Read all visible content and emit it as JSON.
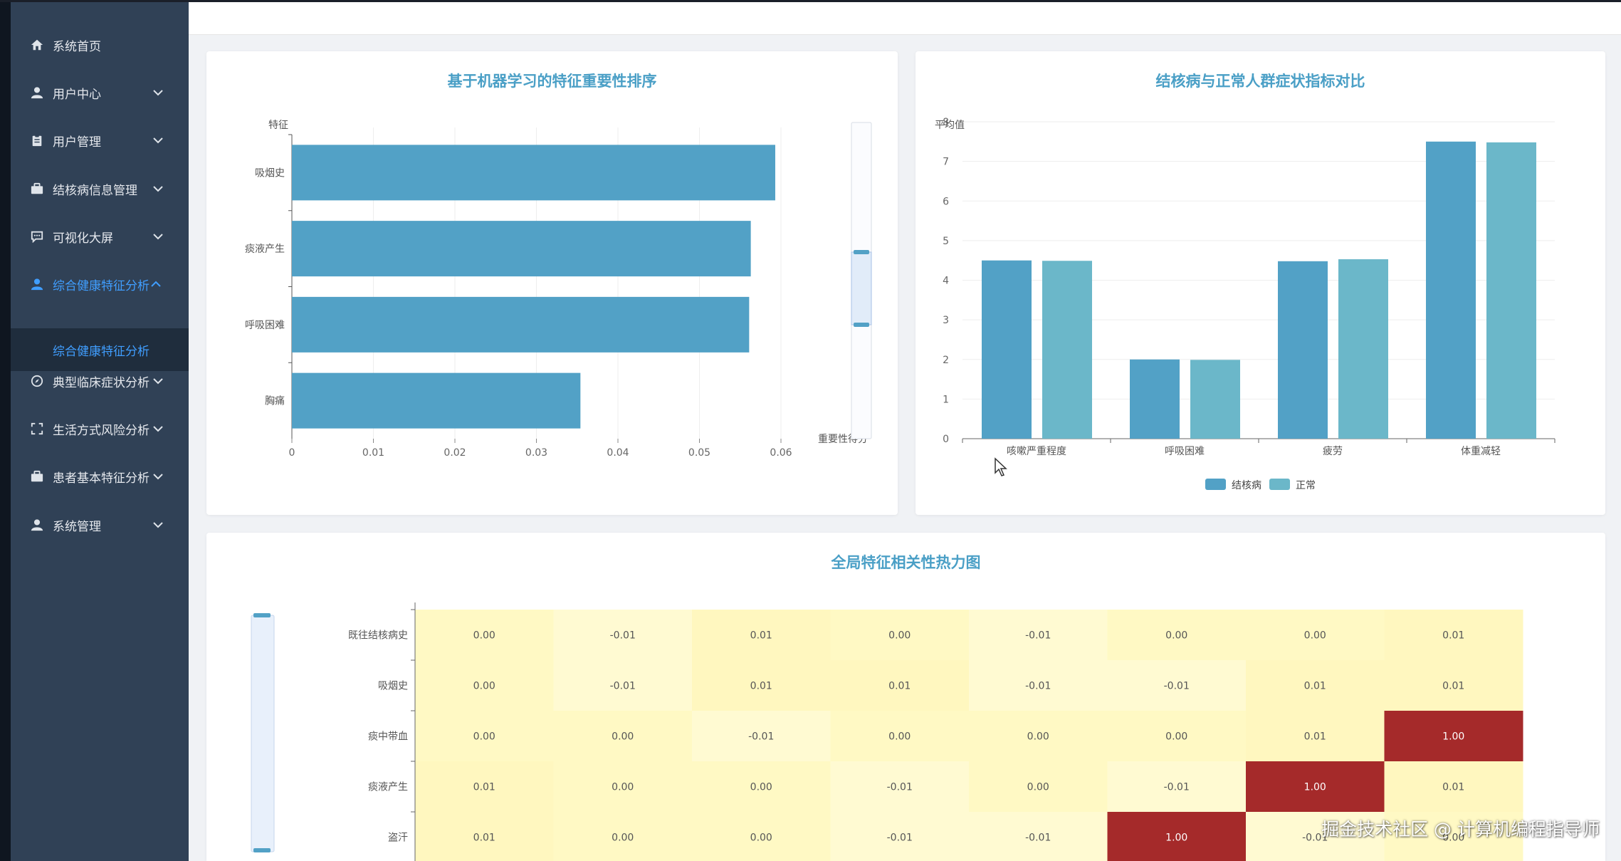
{
  "sidebar": {
    "items": [
      {
        "label": "系统首页",
        "icon": "home-icon",
        "has_arrow": false
      },
      {
        "label": "用户中心",
        "icon": "user-icon",
        "has_arrow": true
      },
      {
        "label": "用户管理",
        "icon": "clipboard-icon",
        "has_arrow": true
      },
      {
        "label": "结核病信息管理",
        "icon": "briefcase-icon",
        "has_arrow": true
      },
      {
        "label": "可视化大屏",
        "icon": "message-icon",
        "has_arrow": true
      },
      {
        "label": "综合健康特征分析",
        "icon": "user-icon",
        "has_arrow": true,
        "active": true,
        "expanded": true
      },
      {
        "label": "典型临床症状分析",
        "icon": "compass-icon",
        "has_arrow": true
      },
      {
        "label": "生活方式风险分析",
        "icon": "fullscreen-icon",
        "has_arrow": true
      },
      {
        "label": "患者基本特征分析",
        "icon": "briefcase-icon",
        "has_arrow": true
      },
      {
        "label": "系统管理",
        "icon": "user-icon",
        "has_arrow": true
      }
    ],
    "active_subitem": "综合健康特征分析"
  },
  "watermark": "掘金技术社区 @ 计算机编程指导师",
  "colors": {
    "sidebar_bg": "#304156",
    "active": "#409eff",
    "title": "#4a9fc6",
    "bar_primary": "#52a1c6",
    "bar_secondary": "#6bb7c9",
    "heat_low": "#fff9c4",
    "heat_high": "#a52a2a"
  },
  "chart_data": [
    {
      "type": "bar",
      "orientation": "horizontal",
      "title": "基于机器学习的特征重要性排序",
      "ylabel": "特征",
      "xlabel": "重要性得分",
      "categories": [
        "吸烟史",
        "痰液产生",
        "呼吸困难",
        "胸痛"
      ],
      "values": [
        0.0593,
        0.0563,
        0.0561,
        0.0354
      ],
      "xlim": [
        0,
        0.06
      ],
      "xticks": [
        "0",
        "0.01",
        "0.02",
        "0.03",
        "0.04",
        "0.05",
        "0.06"
      ],
      "datazoom": "vertical slider at right"
    },
    {
      "type": "bar",
      "title": "结核病与正常人群症状指标对比",
      "ylabel": "平均值",
      "categories": [
        "咳嗽严重程度",
        "呼吸困难",
        "疲劳",
        "体重减轻"
      ],
      "series": [
        {
          "name": "结核病",
          "values": [
            4.5,
            2.0,
            4.48,
            7.5
          ]
        },
        {
          "name": "正常",
          "values": [
            4.49,
            1.99,
            4.53,
            7.48
          ]
        }
      ],
      "ylim": [
        0,
        8
      ],
      "yticks": [
        "0",
        "1",
        "2",
        "3",
        "4",
        "5",
        "6",
        "7",
        "8"
      ],
      "legend": "bottom-center"
    },
    {
      "type": "heatmap",
      "title": "全局特征相关性热力图",
      "rows": [
        "既往结核病史",
        "吸烟史",
        "痰中带血",
        "痰液产生",
        "盗汗"
      ],
      "cells": [
        [
          "0.00",
          "-0.01",
          "0.01",
          "0.00",
          "-0.01",
          "0.00",
          "0.00",
          "0.01"
        ],
        [
          "0.00",
          "-0.01",
          "0.01",
          "0.01",
          "-0.01",
          "-0.01",
          "0.01",
          "0.01"
        ],
        [
          "0.00",
          "0.00",
          "-0.01",
          "0.00",
          "0.00",
          "0.00",
          "0.01",
          "1.00"
        ],
        [
          "0.01",
          "0.00",
          "0.00",
          "-0.01",
          "0.00",
          "-0.01",
          "1.00",
          "0.01"
        ],
        [
          "0.01",
          "0.00",
          "0.00",
          "-0.01",
          "-0.01",
          "1.00",
          "-0.01",
          "0.00"
        ]
      ],
      "datazoom": "vertical slider at left"
    }
  ]
}
